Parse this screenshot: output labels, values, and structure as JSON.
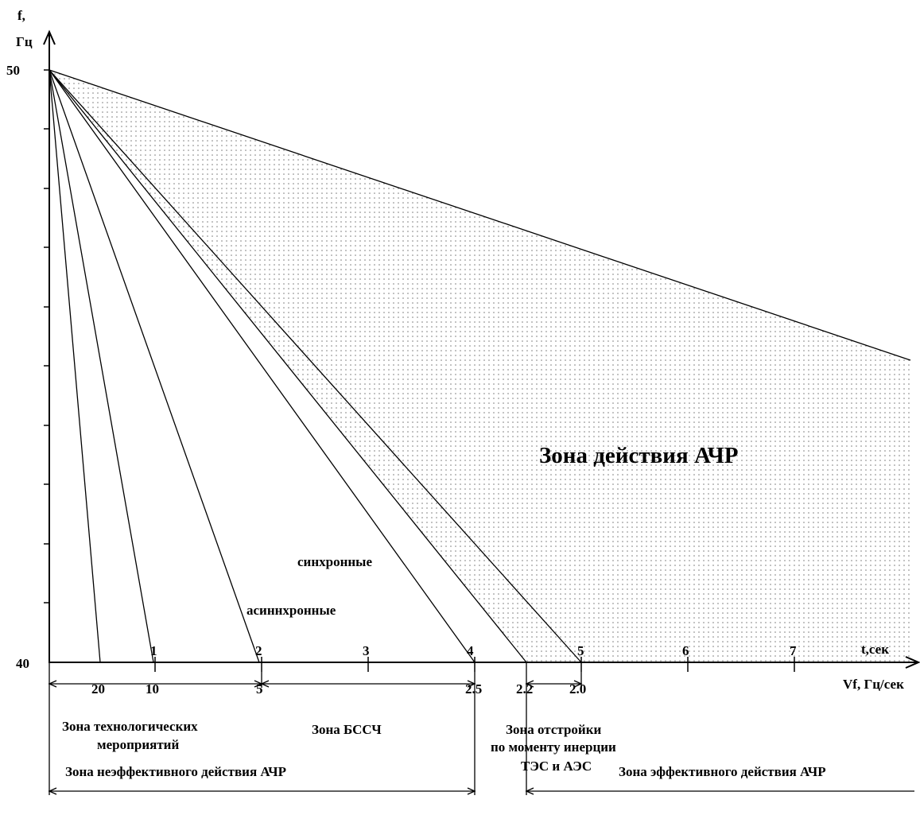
{
  "axes": {
    "y_label_top": "f,",
    "y_label_unit": "Гц",
    "y_max_label": "50",
    "y_min_label": "40",
    "x_label_time": "t,сек",
    "x_label_rate": "Vf, Гц/сек"
  },
  "time_ticks": [
    "1",
    "2",
    "3",
    "4",
    "5",
    "6",
    "7"
  ],
  "rate_ticks": [
    "20",
    "10",
    "5",
    "2.5",
    "2.2",
    "2.0"
  ],
  "chart_data": {
    "type": "line",
    "y_range": [
      40,
      50
    ],
    "x_range_time_sec": [
      0,
      8
    ],
    "series": [
      {
        "name": "",
        "x": [
          0,
          0.5
        ],
        "y": [
          50,
          40
        ]
      },
      {
        "name": "",
        "x": [
          0,
          1
        ],
        "y": [
          50,
          40
        ]
      },
      {
        "name": "асиннхронные",
        "x": [
          0,
          2
        ],
        "y": [
          50,
          40
        ]
      },
      {
        "name": "синхронные",
        "x": [
          0,
          4
        ],
        "y": [
          50,
          40
        ]
      },
      {
        "name": "",
        "x": [
          0,
          4.5
        ],
        "y": [
          50,
          40
        ]
      },
      {
        "name": "",
        "x": [
          0,
          5
        ],
        "y": [
          50,
          40
        ]
      },
      {
        "name": "",
        "x": [
          0,
          8.1
        ],
        "y": [
          50,
          45.1
        ]
      }
    ]
  },
  "curve_labels": {
    "async": "асиннхронные",
    "sync": "синхронные"
  },
  "zones": {
    "main": "Зона действия АЧР",
    "technological_line1": "Зона технологических",
    "technological_line2": "мероприятий",
    "bssch": "Зона БССЧ",
    "detuning_line1": "Зона отстройки",
    "detuning_line2": "по моменту инерции",
    "detuning_line3": "ТЭС и АЭС",
    "ineffective": "Зона неэффективного действия АЧР",
    "effective": "Зона эффективного действия АЧР"
  },
  "colors": {
    "ink": "#000000",
    "background": "#ffffff",
    "dots": "#7a7a7a"
  }
}
